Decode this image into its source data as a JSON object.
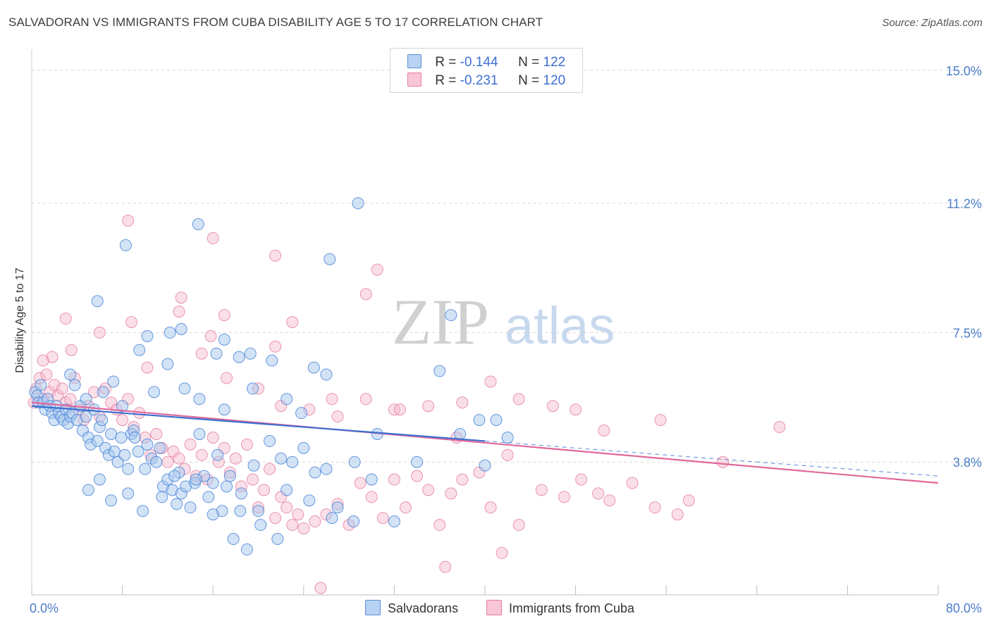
{
  "header": {
    "title": "SALVADORAN VS IMMIGRANTS FROM CUBA DISABILITY AGE 5 TO 17 CORRELATION CHART",
    "source": "Source: ZipAtlas.com"
  },
  "legend": {
    "rows": [
      {
        "r_label": "R =",
        "r_value": "-0.144",
        "n_label": "N =",
        "n_value": "122"
      },
      {
        "r_label": "R =",
        "r_value": "-0.231",
        "n_label": "N =",
        "n_value": "120"
      }
    ]
  },
  "watermark": {
    "zip": "ZIP",
    "atlas": "atlas"
  },
  "colors": {
    "blue_fill": "#a8c8ee",
    "blue_stroke": "#4a86d8",
    "blue_line": "#3b6fd0",
    "pink_fill": "#f6b8cb",
    "pink_stroke": "#e47ca0",
    "pink_line": "#e0689a",
    "tick_text": "#4a7cc9",
    "grid": "#d9d9d9"
  },
  "chart_data": {
    "type": "scatter",
    "title": "SALVADORAN VS IMMIGRANTS FROM CUBA DISABILITY AGE 5 TO 17 CORRELATION CHART",
    "xlabel": "",
    "ylabel": "Disability Age 5 to 17",
    "xlim": [
      0,
      80
    ],
    "ylim": [
      0,
      15.6
    ],
    "x_tick_labels": [
      "0.0%",
      "80.0%"
    ],
    "y_ticks": [
      3.8,
      7.5,
      11.2,
      15.0
    ],
    "y_tick_labels": [
      "3.8%",
      "7.5%",
      "11.2%",
      "15.0%"
    ],
    "grid": "horizontal dashed",
    "legend_position": "top-center",
    "series": [
      {
        "name": "Salvadorans",
        "color": "#4a86d8",
        "trend": {
          "x": [
            0,
            40
          ],
          "y": [
            5.4,
            4.4
          ],
          "dashed_extension_to": [
            80,
            3.4
          ]
        },
        "points": [
          [
            0.3,
            5.8
          ],
          [
            0.5,
            5.7
          ],
          [
            0.6,
            5.5
          ],
          [
            0.8,
            6.0
          ],
          [
            1.0,
            5.5
          ],
          [
            1.2,
            5.3
          ],
          [
            1.4,
            5.6
          ],
          [
            1.6,
            5.4
          ],
          [
            1.8,
            5.2
          ],
          [
            2.0,
            5.0
          ],
          [
            2.2,
            5.4
          ],
          [
            2.4,
            5.2
          ],
          [
            2.6,
            5.1
          ],
          [
            2.8,
            5.0
          ],
          [
            3.0,
            5.3
          ],
          [
            3.2,
            4.9
          ],
          [
            3.4,
            5.1
          ],
          [
            3.6,
            5.2
          ],
          [
            3.8,
            6.0
          ],
          [
            4.0,
            5.0
          ],
          [
            4.3,
            5.4
          ],
          [
            4.5,
            4.7
          ],
          [
            4.8,
            5.1
          ],
          [
            5.0,
            4.5
          ],
          [
            5.2,
            4.3
          ],
          [
            5.5,
            5.3
          ],
          [
            5.8,
            4.4
          ],
          [
            6.0,
            4.8
          ],
          [
            6.2,
            5.0
          ],
          [
            6.5,
            4.2
          ],
          [
            6.8,
            4.0
          ],
          [
            7.0,
            4.6
          ],
          [
            7.3,
            4.1
          ],
          [
            7.6,
            3.8
          ],
          [
            7.9,
            4.5
          ],
          [
            8.2,
            4.0
          ],
          [
            8.5,
            3.6
          ],
          [
            8.8,
            4.6
          ],
          [
            9.0,
            4.7
          ],
          [
            9.4,
            4.1
          ],
          [
            9.8,
            2.4
          ],
          [
            10.2,
            4.3
          ],
          [
            10.6,
            3.9
          ],
          [
            11.0,
            3.8
          ],
          [
            11.3,
            4.2
          ],
          [
            11.6,
            3.1
          ],
          [
            12.0,
            3.3
          ],
          [
            12.4,
            3.0
          ],
          [
            12.8,
            2.6
          ],
          [
            13.2,
            2.9
          ],
          [
            13.6,
            3.1
          ],
          [
            14.0,
            2.5
          ],
          [
            14.4,
            3.2
          ],
          [
            14.8,
            4.6
          ],
          [
            15.2,
            3.4
          ],
          [
            15.6,
            2.8
          ],
          [
            16.0,
            3.2
          ],
          [
            16.4,
            4.0
          ],
          [
            16.8,
            2.4
          ],
          [
            17.2,
            3.1
          ],
          [
            17.8,
            1.6
          ],
          [
            18.4,
            2.4
          ],
          [
            19.0,
            1.3
          ],
          [
            19.6,
            3.7
          ],
          [
            20.2,
            2.0
          ],
          [
            21.0,
            4.4
          ],
          [
            22.0,
            3.9
          ],
          [
            23.0,
            3.8
          ],
          [
            24.0,
            4.2
          ],
          [
            25.0,
            3.5
          ],
          [
            26.0,
            3.6
          ],
          [
            27.0,
            2.5
          ],
          [
            28.5,
            3.8
          ],
          [
            30.0,
            3.3
          ],
          [
            32.0,
            2.1
          ],
          [
            5.0,
            3.0
          ],
          [
            6.0,
            3.3
          ],
          [
            7.0,
            2.7
          ],
          [
            8.5,
            2.9
          ],
          [
            10.0,
            3.6
          ],
          [
            11.5,
            2.8
          ],
          [
            13.0,
            3.5
          ],
          [
            14.5,
            3.3
          ],
          [
            16.0,
            2.3
          ],
          [
            17.5,
            3.4
          ],
          [
            18.5,
            2.9
          ],
          [
            20.0,
            2.4
          ],
          [
            22.5,
            3.0
          ],
          [
            24.5,
            2.7
          ],
          [
            26.5,
            2.2
          ],
          [
            3.4,
            6.3
          ],
          [
            4.8,
            5.6
          ],
          [
            6.3,
            5.8
          ],
          [
            7.2,
            6.1
          ],
          [
            8.0,
            5.4
          ],
          [
            9.5,
            7.0
          ],
          [
            10.8,
            5.8
          ],
          [
            12.0,
            6.6
          ],
          [
            13.5,
            5.9
          ],
          [
            14.8,
            5.6
          ],
          [
            16.3,
            6.9
          ],
          [
            17.0,
            5.3
          ],
          [
            18.3,
            6.8
          ],
          [
            19.5,
            5.9
          ],
          [
            21.2,
            6.7
          ],
          [
            22.5,
            5.6
          ],
          [
            23.8,
            5.2
          ],
          [
            24.9,
            6.5
          ],
          [
            26.0,
            6.3
          ],
          [
            5.8,
            8.4
          ],
          [
            8.3,
            10.0
          ],
          [
            10.2,
            7.4
          ],
          [
            12.2,
            7.5
          ],
          [
            13.2,
            7.6
          ],
          [
            14.7,
            10.6
          ],
          [
            17.0,
            7.3
          ],
          [
            19.3,
            6.9
          ],
          [
            26.3,
            9.6
          ],
          [
            28.8,
            11.2
          ],
          [
            37.0,
            8.0
          ],
          [
            36.0,
            6.4
          ],
          [
            39.5,
            5.0
          ],
          [
            37.8,
            4.6
          ],
          [
            40.0,
            3.7
          ],
          [
            34.0,
            3.8
          ],
          [
            30.5,
            4.6
          ],
          [
            41.0,
            5.0
          ],
          [
            42.0,
            4.5
          ],
          [
            12.6,
            3.4
          ],
          [
            9.1,
            4.5
          ],
          [
            21.7,
            1.6
          ],
          [
            28.4,
            2.1
          ]
        ]
      },
      {
        "name": "Immigrants from Cuba",
        "color": "#e47ca0",
        "trend": {
          "x": [
            0,
            80
          ],
          "y": [
            5.5,
            3.2
          ]
        },
        "points": [
          [
            0.2,
            5.5
          ],
          [
            0.4,
            5.9
          ],
          [
            0.7,
            6.2
          ],
          [
            1.0,
            5.6
          ],
          [
            1.3,
            6.3
          ],
          [
            1.6,
            5.8
          ],
          [
            2.0,
            6.0
          ],
          [
            2.3,
            5.7
          ],
          [
            2.7,
            5.9
          ],
          [
            3.0,
            5.5
          ],
          [
            3.4,
            5.6
          ],
          [
            3.8,
            6.2
          ],
          [
            4.2,
            5.3
          ],
          [
            4.6,
            5.0
          ],
          [
            5.0,
            5.4
          ],
          [
            5.5,
            5.8
          ],
          [
            6.0,
            5.1
          ],
          [
            6.5,
            5.9
          ],
          [
            7.0,
            5.5
          ],
          [
            7.5,
            5.3
          ],
          [
            8.0,
            5.0
          ],
          [
            8.5,
            5.6
          ],
          [
            9.0,
            4.8
          ],
          [
            9.5,
            5.2
          ],
          [
            10.0,
            4.5
          ],
          [
            10.5,
            4.0
          ],
          [
            11.0,
            4.6
          ],
          [
            11.5,
            4.2
          ],
          [
            12.0,
            3.8
          ],
          [
            12.5,
            4.1
          ],
          [
            13.0,
            3.9
          ],
          [
            13.5,
            3.6
          ],
          [
            14.0,
            4.3
          ],
          [
            14.5,
            3.4
          ],
          [
            15.0,
            4.0
          ],
          [
            15.5,
            3.3
          ],
          [
            16.0,
            4.5
          ],
          [
            16.5,
            3.8
          ],
          [
            17.0,
            4.2
          ],
          [
            17.5,
            3.5
          ],
          [
            18.0,
            3.9
          ],
          [
            18.5,
            3.1
          ],
          [
            19.0,
            4.3
          ],
          [
            19.5,
            3.3
          ],
          [
            20.0,
            2.5
          ],
          [
            20.5,
            3.0
          ],
          [
            21.0,
            3.6
          ],
          [
            21.5,
            2.2
          ],
          [
            22.0,
            2.8
          ],
          [
            22.5,
            2.5
          ],
          [
            23.0,
            2.0
          ],
          [
            23.5,
            2.3
          ],
          [
            24.0,
            1.9
          ],
          [
            25.0,
            2.1
          ],
          [
            26.0,
            2.3
          ],
          [
            27.0,
            2.6
          ],
          [
            28.0,
            2.0
          ],
          [
            29.0,
            3.2
          ],
          [
            30.0,
            2.8
          ],
          [
            31.0,
            2.2
          ],
          [
            32.0,
            3.3
          ],
          [
            33.0,
            2.5
          ],
          [
            34.0,
            3.4
          ],
          [
            35.0,
            3.0
          ],
          [
            36.0,
            2.0
          ],
          [
            37.0,
            2.9
          ],
          [
            38.0,
            3.3
          ],
          [
            39.5,
            3.5
          ],
          [
            40.5,
            2.5
          ],
          [
            41.5,
            1.2
          ],
          [
            43.0,
            2.0
          ],
          [
            45.0,
            3.0
          ],
          [
            47.0,
            2.8
          ],
          [
            48.5,
            3.3
          ],
          [
            50.0,
            2.9
          ],
          [
            51.0,
            2.7
          ],
          [
            53.0,
            3.2
          ],
          [
            55.0,
            2.5
          ],
          [
            57.0,
            2.3
          ],
          [
            58.0,
            2.7
          ],
          [
            1.8,
            6.8
          ],
          [
            3.5,
            7.0
          ],
          [
            6.0,
            7.5
          ],
          [
            8.8,
            7.8
          ],
          [
            10.2,
            6.5
          ],
          [
            13.0,
            8.1
          ],
          [
            15.0,
            6.9
          ],
          [
            17.2,
            6.2
          ],
          [
            20.0,
            5.9
          ],
          [
            22.0,
            5.4
          ],
          [
            24.5,
            5.3
          ],
          [
            27.0,
            5.1
          ],
          [
            29.5,
            5.6
          ],
          [
            32.0,
            5.3
          ],
          [
            35.0,
            5.4
          ],
          [
            38.0,
            5.5
          ],
          [
            40.5,
            6.1
          ],
          [
            43.0,
            5.6
          ],
          [
            46.0,
            5.4
          ],
          [
            48.0,
            5.3
          ],
          [
            1.0,
            6.7
          ],
          [
            3.0,
            7.9
          ],
          [
            8.5,
            10.7
          ],
          [
            16.0,
            10.2
          ],
          [
            21.5,
            9.7
          ],
          [
            30.5,
            9.3
          ],
          [
            29.5,
            8.6
          ],
          [
            13.2,
            8.5
          ],
          [
            17.0,
            8.0
          ],
          [
            23.0,
            7.8
          ],
          [
            15.8,
            7.4
          ],
          [
            21.5,
            7.1
          ],
          [
            26.5,
            5.6
          ],
          [
            32.5,
            5.3
          ],
          [
            37.5,
            4.5
          ],
          [
            42.0,
            4.0
          ],
          [
            50.5,
            4.7
          ],
          [
            55.5,
            5.0
          ],
          [
            61.0,
            3.8
          ],
          [
            66.0,
            4.8
          ],
          [
            36.5,
            0.8
          ],
          [
            25.5,
            0.2
          ]
        ]
      }
    ]
  },
  "bottom_legend": {
    "items": [
      {
        "label": "Salvadorans"
      },
      {
        "label": "Immigrants from Cuba"
      }
    ]
  }
}
